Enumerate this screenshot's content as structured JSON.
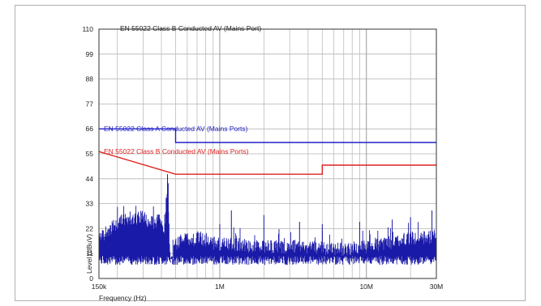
{
  "chart_data": {
    "type": "line",
    "title": "EN 55022 Class B Conducted AV (Mains Port)",
    "xlabel": "Frequency (Hz)",
    "ylabel": "Level (dBuV)",
    "x_scale": "log",
    "xlim": [
      150000,
      30000000
    ],
    "ylim": [
      0,
      110
    ],
    "grid": true,
    "x_ticks": [
      {
        "value": 150000,
        "label": "150k"
      },
      {
        "value": 1000000,
        "label": "1M"
      },
      {
        "value": 10000000,
        "label": "10M"
      },
      {
        "value": 30000000,
        "label": "30M"
      }
    ],
    "y_ticks": [
      0,
      11,
      22,
      33,
      44,
      55,
      66,
      77,
      88,
      99,
      110
    ],
    "series": [
      {
        "name": "EN 55022 Class A Conducted AV (Mains Ports)",
        "color": "#2020c8",
        "x": [
          150000,
          500000,
          500000,
          30000000
        ],
        "y": [
          66,
          66,
          60,
          60
        ]
      },
      {
        "name": "EN 55022 Class B Conducted AV (Mains Ports)",
        "color": "#e02020",
        "x": [
          150000,
          500000,
          5000000,
          5000000,
          30000000
        ],
        "y": [
          56,
          46,
          46,
          50,
          50
        ]
      },
      {
        "color": "#1a1aa8",
        "x": [
          150000,
          170000,
          190000,
          210000,
          240000,
          270000,
          300000,
          330000,
          360000,
          390000,
          420000,
          440000,
          460000,
          500000,
          560000,
          640000,
          720000,
          850000,
          1000000,
          1300000,
          1700000,
          2200000,
          3000000,
          4000000,
          5500000,
          7500000,
          10000000,
          13000000,
          17000000,
          22000000,
          26000000,
          30000000
        ],
        "y": [
          20,
          24,
          26,
          28,
          30,
          29,
          31,
          27,
          28,
          29,
          24,
          46,
          8,
          18,
          21,
          20,
          21,
          19,
          18,
          18,
          17,
          17,
          17,
          17,
          16,
          16,
          17,
          18,
          20,
          21,
          21,
          22
        ]
      }
    ]
  }
}
